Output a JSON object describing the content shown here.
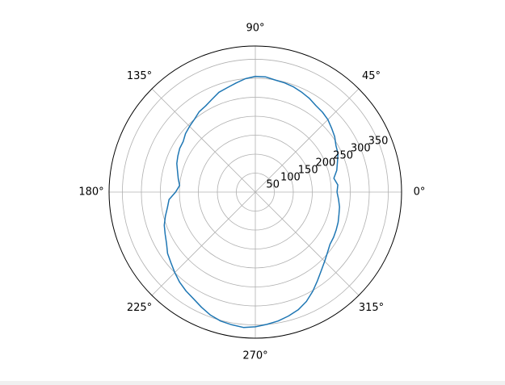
{
  "chart_data": {
    "type": "line",
    "projection": "polar",
    "title": "",
    "theta_unit": "degrees",
    "theta_ticks": [
      "0°",
      "45°",
      "90°",
      "135°",
      "180°",
      "225°",
      "270°",
      "315°"
    ],
    "theta_tick_values": [
      0,
      45,
      90,
      135,
      180,
      225,
      270,
      315
    ],
    "r_ticks": [
      50,
      100,
      150,
      200,
      250,
      300,
      350
    ],
    "r_tick_labels": [
      "50",
      "100",
      "150",
      "200",
      "250",
      "300",
      "350"
    ],
    "rlim": [
      0,
      385
    ],
    "grid": true,
    "colors": {
      "line": "#1f77b4",
      "grid": "#b0b0b0",
      "spine": "#000000"
    },
    "series": [
      {
        "theta": [
          0,
          5,
          10,
          15,
          20,
          25,
          30,
          35,
          40,
          45,
          50,
          55,
          60,
          65,
          70,
          75,
          80,
          85,
          90,
          95,
          100,
          105,
          110,
          115,
          120,
          125,
          130,
          135,
          140,
          145,
          150,
          155,
          160,
          165,
          170,
          175,
          180,
          185,
          190,
          195,
          200,
          205,
          210,
          215,
          220,
          225,
          230,
          235,
          240,
          245,
          250,
          255,
          260,
          265,
          270,
          275,
          280,
          285,
          290,
          295,
          300,
          305,
          310,
          315,
          320,
          325,
          330,
          335,
          340,
          345,
          350,
          355,
          360
        ],
        "r": [
          215,
          218,
          210,
          222,
          230,
          240,
          245,
          255,
          262,
          270,
          275,
          278,
          285,
          290,
          295,
          298,
          300,
          305,
          305,
          300,
          292,
          285,
          280,
          270,
          262,
          258,
          250,
          245,
          240,
          232,
          230,
          225,
          220,
          212,
          206,
          200,
          210,
          228,
          235,
          245,
          255,
          262,
          270,
          282,
          290,
          300,
          310,
          318,
          325,
          335,
          345,
          352,
          355,
          358,
          355,
          350,
          345,
          338,
          330,
          318,
          302,
          285,
          270,
          258,
          248,
          240,
          238,
          235,
          232,
          228,
          225,
          220,
          215
        ]
      }
    ]
  }
}
